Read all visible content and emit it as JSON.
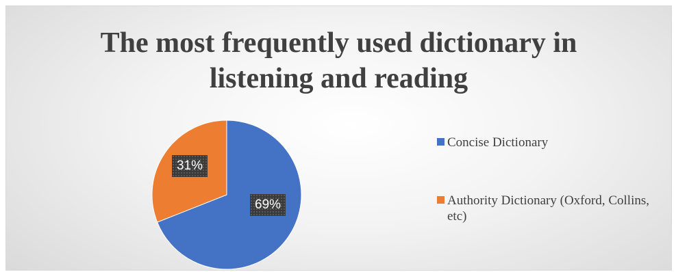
{
  "chart_data": {
    "type": "pie",
    "title": "The most frequently used dictionary in listening and reading",
    "title_lines": [
      "The most frequently used dictionary in",
      "listening and reading"
    ],
    "slices": [
      {
        "label": "Concise Dictionary",
        "value": 69,
        "display": "69%",
        "color": "#4472c4"
      },
      {
        "label": "Authority Dictionary (Oxford, Collins, etc)",
        "value": 31,
        "display": "31%",
        "color": "#ed7d31"
      }
    ],
    "start_angle": "12 o'clock",
    "direction": "clockwise",
    "legend_position": "right"
  }
}
